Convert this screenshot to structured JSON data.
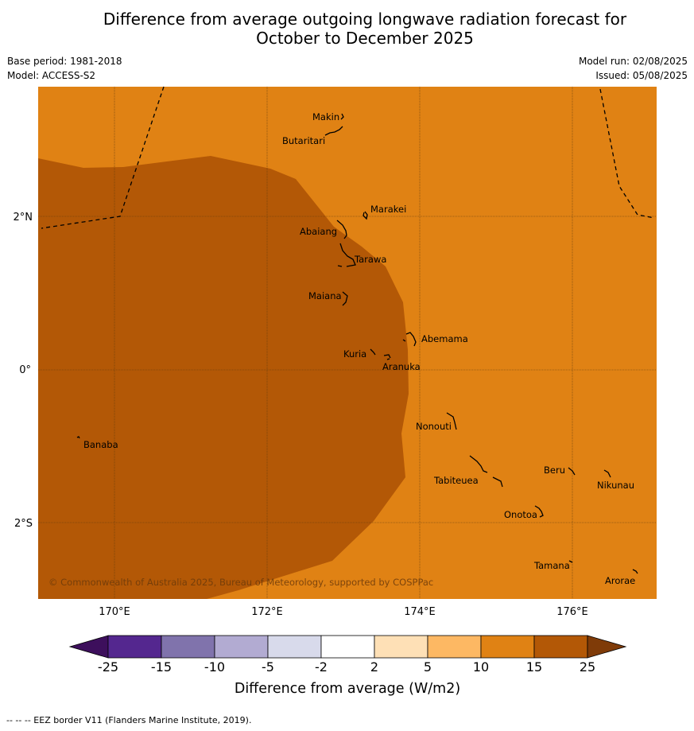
{
  "title_line1": "Difference from average outgoing longwave radiation forecast for",
  "title_line2": "October to December 2025",
  "base_period": "Base period: 1981-2018",
  "model": "Model: ACCESS-S2",
  "model_run": "Model run: 02/08/2025",
  "issued": "Issued: 05/08/2025",
  "copyright": "© Commonwealth of Australia 2025, Bureau of Meteorology, supported by COSPPac",
  "lon_labels": [
    "170°E",
    "172°E",
    "174°E",
    "176°E"
  ],
  "lat_labels": [
    "2°N",
    "0°",
    "2°S"
  ],
  "islands": [
    "Makin",
    "Butaritari",
    "Marakei",
    "Abaiang",
    "Tarawa",
    "Maiana",
    "Abemama",
    "Kuria",
    "Aranuka",
    "Nonouti",
    "Banaba",
    "Beru",
    "Nikunau",
    "Tabiteuea",
    "Onotoa",
    "Tamana",
    "Arorae"
  ],
  "legend": {
    "ticks": [
      "-25",
      "-15",
      "-10",
      "-5",
      "-2",
      "2",
      "5",
      "10",
      "15",
      "25"
    ],
    "colors": [
      "#3d0f5c",
      "#54278f",
      "#8073ac",
      "#b2abd2",
      "#d8daeb",
      "#ffffff",
      "#fee0b6",
      "#fdb863",
      "#e08214",
      "#b35806",
      "#7f3b08"
    ],
    "label": "Difference from average (W/m2)"
  },
  "footer": "--  --  -- EEZ border V11 (Flanders Marine Institute, 2019)."
}
